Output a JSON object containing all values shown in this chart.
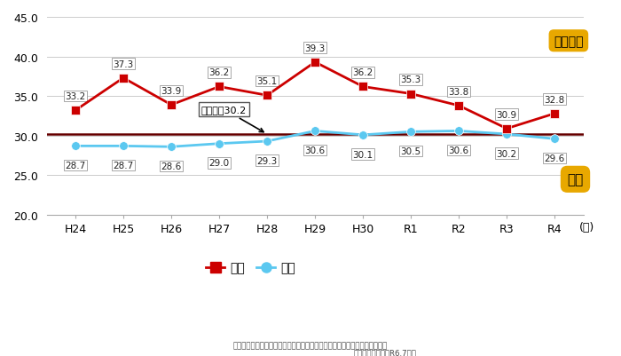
{
  "x_labels": [
    "H24",
    "H25",
    "H26",
    "H27",
    "H28",
    "H29",
    "H30",
    "R1",
    "R2",
    "R3",
    "R4"
  ],
  "kagoshima_values": [
    33.2,
    37.3,
    33.9,
    36.2,
    35.1,
    39.3,
    36.2,
    35.3,
    33.8,
    30.9,
    32.8
  ],
  "national_values": [
    28.7,
    28.7,
    28.6,
    29.0,
    29.3,
    30.6,
    30.1,
    30.5,
    30.6,
    30.2,
    29.6
  ],
  "target_value": 30.2,
  "target_label": "目標値：30.2",
  "ylim": [
    20.0,
    45.0
  ],
  "yticks": [
    20.0,
    25.0,
    30.0,
    35.0,
    40.0,
    45.0
  ],
  "kagoshima_color": "#cc0000",
  "national_color": "#5bc8f0",
  "target_line_color": "#660000",
  "bg_color": "#ffffff",
  "legend_label_kagoshima": "本県",
  "legend_label_national": "全国",
  "kagoshima_callout": "鹿児島県",
  "national_callout": "全国",
  "callout_bg_color": "#e8a800",
  "xlabel_suffix": "(年)",
  "source_text": "【出典：わが国の慢性透析療法の現況（日本透析医学会）から引用，改変】",
  "source_text2": "健康増課　改変　R6.7時点"
}
